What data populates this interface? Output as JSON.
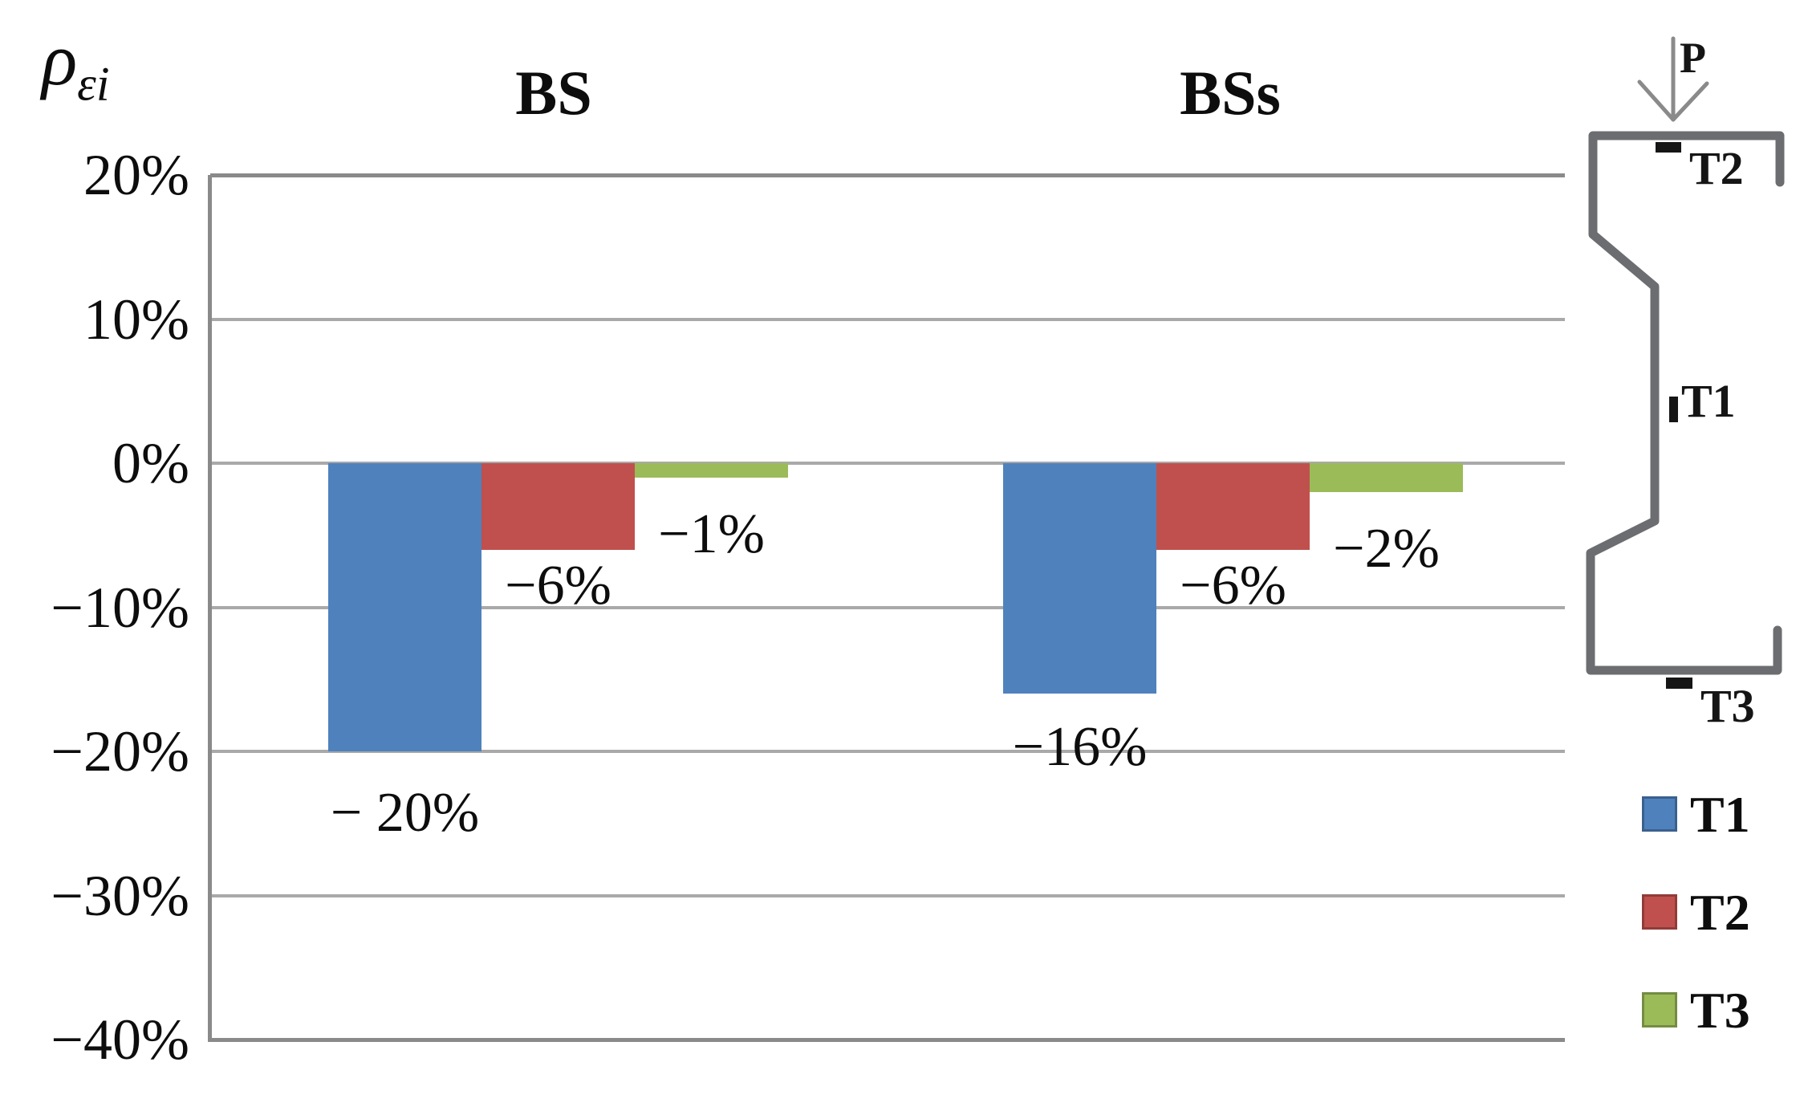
{
  "chart_data": {
    "type": "bar",
    "title": "",
    "ylabel_symbol": "ρ",
    "ylabel_subscript": "εi",
    "categories": [
      "BS",
      "BSs"
    ],
    "series": [
      {
        "name": "T1",
        "color": "#4F81BD",
        "values": [
          -20,
          -16
        ],
        "data_labels": [
          "− 20%",
          "−16%"
        ]
      },
      {
        "name": "T2",
        "color": "#C0504D",
        "values": [
          -6,
          -6
        ],
        "data_labels": [
          "−6%",
          "−6%"
        ]
      },
      {
        "name": "T3",
        "color": "#9BBB59",
        "values": [
          -1,
          -2
        ],
        "data_labels": [
          "−1%",
          "−2%"
        ]
      }
    ],
    "ylim": [
      -40,
      20
    ],
    "ytick_step": 10,
    "y_ticks": [
      "20%",
      "10%",
      "0%",
      "−10%",
      "−20%",
      "−30%",
      "−40%"
    ],
    "grid": true,
    "legend_position": "bottom-right"
  },
  "legend": {
    "items": [
      {
        "label": "T1",
        "color": "#4F81BD"
      },
      {
        "label": "T2",
        "color": "#C0504D"
      },
      {
        "label": "T3",
        "color": "#9BBB59"
      }
    ]
  },
  "diagram": {
    "load_label": "P",
    "gauge_top_label": "T2",
    "gauge_web_label": "T1",
    "gauge_bottom_label": "T3",
    "outline_color": "#6b6d70"
  },
  "colors": {
    "gridline": "#a9a9a9",
    "axis_border": "#8a8a8a",
    "text": "#0d0d0d"
  }
}
